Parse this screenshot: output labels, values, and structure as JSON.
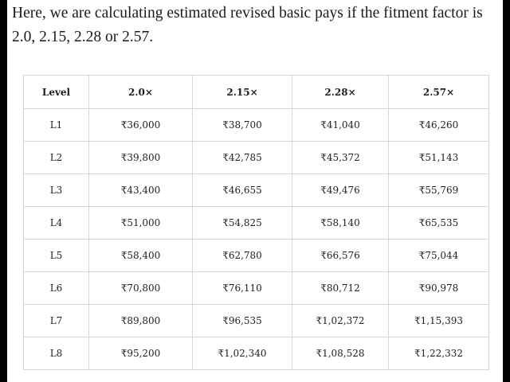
{
  "intro_text": "Here, we are calculating estimated revised basic pays if the fitment factor is 2.0, 2.15, 2.28 or 2.57.",
  "table": {
    "headers": [
      "Level",
      "2.0×",
      "2.15×",
      "2.28×",
      "2.57×"
    ],
    "rows": [
      [
        "L1",
        "₹36,000",
        "₹38,700",
        "₹41,040",
        "₹46,260"
      ],
      [
        "L2",
        "₹39,800",
        "₹42,785",
        "₹45,372",
        "₹51,143"
      ],
      [
        "L3",
        "₹43,400",
        "₹46,655",
        "₹49,476",
        "₹55,769"
      ],
      [
        "L4",
        "₹51,000",
        "₹54,825",
        "₹58,140",
        "₹65,535"
      ],
      [
        "L5",
        "₹58,400",
        "₹62,780",
        "₹66,576",
        "₹75,044"
      ],
      [
        "L6",
        "₹70,800",
        "₹76,110",
        "₹80,712",
        "₹90,978"
      ],
      [
        "L7",
        "₹89,800",
        "₹96,535",
        "₹1,02,372",
        "₹1,15,393"
      ],
      [
        "L8",
        "₹95,200",
        "₹1,02,340",
        "₹1,08,528",
        "₹1,22,332"
      ]
    ]
  }
}
